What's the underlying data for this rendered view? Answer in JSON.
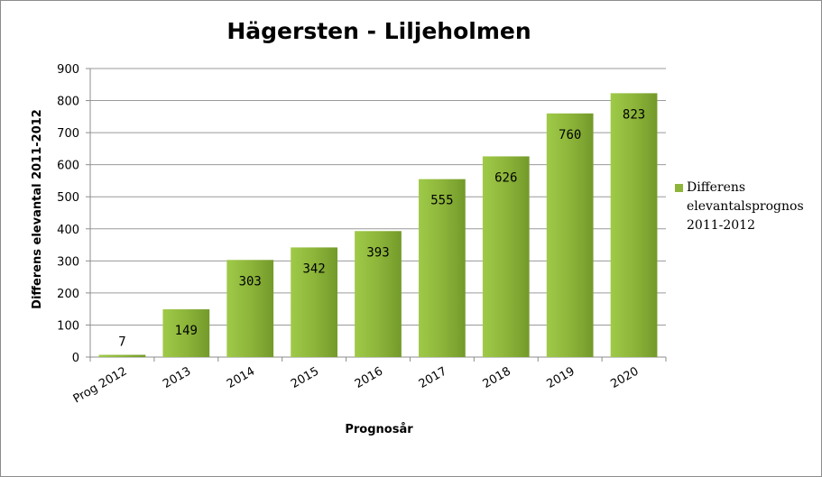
{
  "chart_data": {
    "type": "bar",
    "title": "Hägersten - Liljeholmen",
    "xlabel": "Prognosår",
    "ylabel": "Differens elevantal 2011-2012",
    "categories": [
      "Prog 2012",
      "2013",
      "2014",
      "2015",
      "2016",
      "2017",
      "2018",
      "2019",
      "2020"
    ],
    "series": [
      {
        "name": "Differens elevantalsprognos 2011-2012",
        "values": [
          7,
          149,
          303,
          342,
          393,
          555,
          626,
          760,
          823
        ]
      }
    ],
    "ylim": [
      0,
      900
    ],
    "yticks": [
      0,
      100,
      200,
      300,
      400,
      500,
      600,
      700,
      800,
      900
    ],
    "grid": true,
    "legend": "right",
    "data_labels": true,
    "bar_color": "#8db53a"
  }
}
